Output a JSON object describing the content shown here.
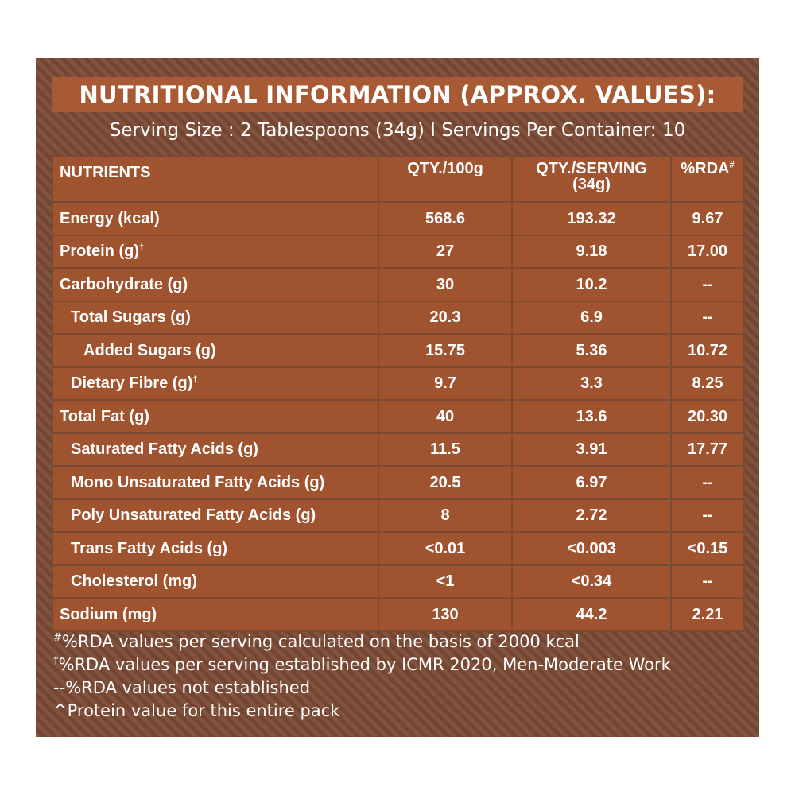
{
  "title": "NUTRITIONAL INFORMATION (APPROX. VALUES):",
  "serving_info": "Serving Size : 2 Tablespoons (34g) I Servings Per Container: 10",
  "table": {
    "headers": {
      "nutrients": "NUTRIENTS",
      "qty_100g": "QTY./100g",
      "qty_serving": "QTY./SERVING",
      "qty_serving_sub": "(34g)",
      "rda": "%RDA",
      "rda_mark": "#"
    },
    "rows": [
      {
        "name": "Energy (kcal)",
        "mark": "",
        "per100": "568.6",
        "perServing": "193.32",
        "rda": "9.67"
      },
      {
        "name": "Protein (g)",
        "mark": "†",
        "per100": "27",
        "perServing": "9.18",
        "rda": "17.00"
      },
      {
        "name": "Carbohydrate (g)",
        "mark": "",
        "per100": "30",
        "perServing": "10.2",
        "rda": "--"
      },
      {
        "name": "Total Sugars (g)",
        "mark": "",
        "per100": "20.3",
        "perServing": "6.9",
        "rda": "--"
      },
      {
        "name": "Added Sugars (g)",
        "mark": "",
        "per100": "15.75",
        "perServing": "5.36",
        "rda": "10.72"
      },
      {
        "name": "Dietary Fibre (g)",
        "mark": "†",
        "per100": "9.7",
        "perServing": "3.3",
        "rda": "8.25"
      },
      {
        "name": "Total Fat (g)",
        "mark": "",
        "per100": "40",
        "perServing": "13.6",
        "rda": "20.30"
      },
      {
        "name": "Saturated Fatty Acids (g)",
        "mark": "",
        "per100": "11.5",
        "perServing": "3.91",
        "rda": "17.77"
      },
      {
        "name": "Mono Unsaturated Fatty Acids (g)",
        "mark": "",
        "per100": "20.5",
        "perServing": "6.97",
        "rda": "--"
      },
      {
        "name": "Poly Unsaturated Fatty Acids (g)",
        "mark": "",
        "per100": "8",
        "perServing": "2.72",
        "rda": "--"
      },
      {
        "name": "Trans Fatty Acids (g)",
        "mark": "",
        "per100": "<0.01",
        "perServing": "<0.003",
        "rda": "<0.15"
      },
      {
        "name": "Cholesterol (mg)",
        "mark": "",
        "per100": "<1",
        "perServing": "<0.34",
        "rda": "--"
      },
      {
        "name": "Sodium (mg)",
        "mark": "",
        "per100": "130",
        "perServing": "44.2",
        "rda": "2.21"
      }
    ]
  },
  "footnotes": [
    {
      "mark": "#",
      "text": "%RDA values per serving calculated on the basis of 2000 kcal"
    },
    {
      "mark": "†",
      "text": "%RDA values per serving established by ICMR 2020, Men-Moderate Work"
    },
    {
      "mark": "",
      "text": "--%RDA values not established"
    },
    {
      "mark": "",
      "text": "^Protein value for this entire pack"
    }
  ],
  "colors": {
    "panel_bg": "#7a4a34",
    "cell_bg": "#a0532f",
    "title_bg": "#a85a34",
    "text": "#ffffff"
  }
}
